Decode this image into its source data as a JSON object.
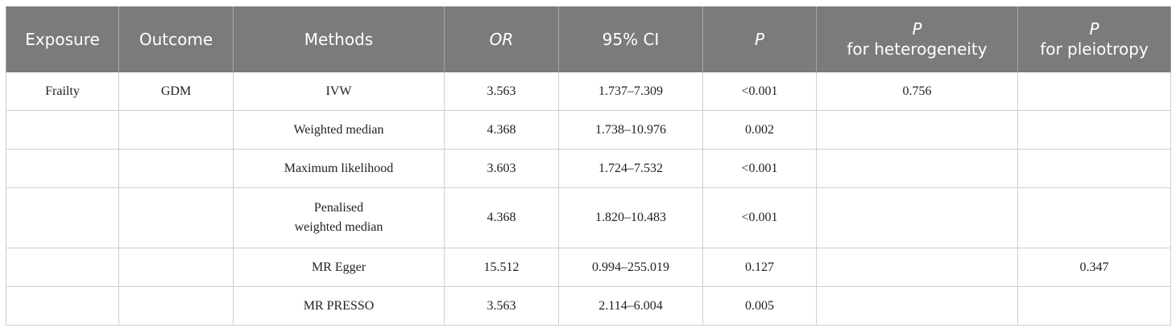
{
  "table": {
    "headers": {
      "exposure": "Exposure",
      "outcome": "Outcome",
      "methods": "Methods",
      "or": "OR",
      "ci": "95% CI",
      "p": "P",
      "p_het_italic": "P",
      "p_het_text": "for heterogeneity",
      "p_pleio_italic": "P",
      "p_pleio_text": "for pleiotropy"
    },
    "rows": [
      {
        "exposure": "Frailty",
        "outcome": "GDM",
        "method": "IVW",
        "or": "3.563",
        "ci": "1.737–7.309",
        "p": "<0.001",
        "p_het": "0.756",
        "p_pleio": ""
      },
      {
        "exposure": "",
        "outcome": "",
        "method": "Weighted median",
        "or": "4.368",
        "ci": "1.738–10.976",
        "p": "0.002",
        "p_het": "",
        "p_pleio": ""
      },
      {
        "exposure": "",
        "outcome": "",
        "method": "Maximum likelihood",
        "or": "3.603",
        "ci": "1.724–7.532",
        "p": "<0.001",
        "p_het": "",
        "p_pleio": ""
      },
      {
        "exposure": "",
        "outcome": "",
        "method_line1": "Penalised",
        "method_line2": "weighted median",
        "or": "4.368",
        "ci": "1.820–10.483",
        "p": "<0.001",
        "p_het": "",
        "p_pleio": ""
      },
      {
        "exposure": "",
        "outcome": "",
        "method": "MR Egger",
        "or": "15.512",
        "ci": "0.994–255.019",
        "p": "0.127",
        "p_het": "",
        "p_pleio": "0.347"
      },
      {
        "exposure": "",
        "outcome": "",
        "method": "MR PRESSO",
        "or": "3.563",
        "ci": "2.114–6.004",
        "p": "0.005",
        "p_het": "",
        "p_pleio": ""
      }
    ]
  }
}
